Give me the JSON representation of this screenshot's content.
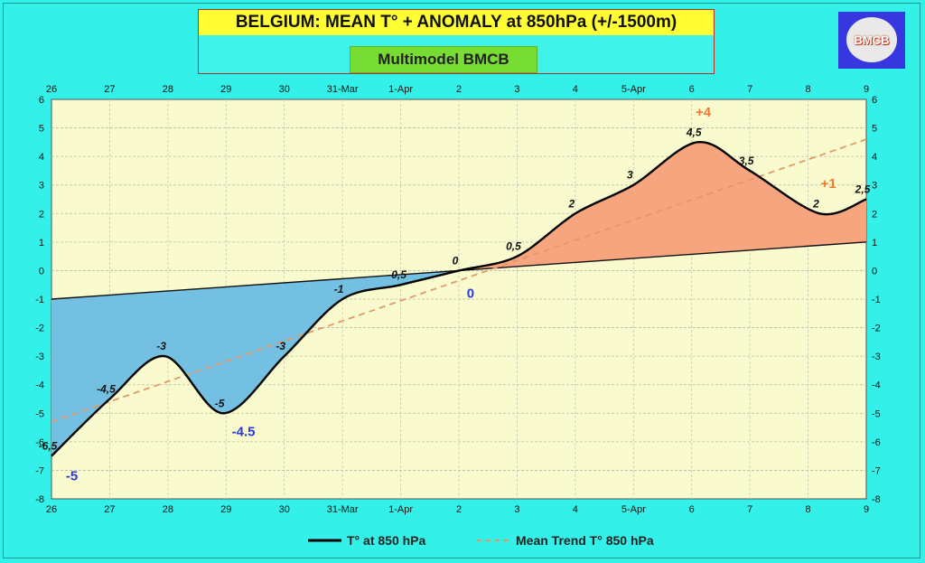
{
  "title": "BELGIUM:  MEAN T° + ANOMALY at 850hPa (+/-1500m)",
  "subtitle": "Multimodel BMCB",
  "logo_text": "BMCB",
  "colors": {
    "background": "#33f0e8",
    "plot_bg": "#fafacf",
    "warm_fill": "#f7a57e",
    "cold_fill": "#74c0e2",
    "temp_line": "#000000",
    "trend_line": "#e09a6a",
    "warm_label": "#ef7a2e",
    "cold_label": "#2b39d8"
  },
  "chart_data": {
    "type": "line",
    "x_ticks": [
      "26",
      "27",
      "28",
      "29",
      "30",
      "31-Mar",
      "1-Apr",
      "2",
      "3",
      "4",
      "5-Apr",
      "6",
      "7",
      "8",
      "9"
    ],
    "ylim": [
      -8,
      6
    ],
    "y_ticks": [
      -8,
      -7,
      -6,
      -5,
      -4,
      -3,
      -2,
      -1,
      0,
      1,
      2,
      3,
      4,
      5,
      6
    ],
    "grid": true,
    "legend_position": "bottom",
    "series": [
      {
        "name": "T° at 850 hPa",
        "points": [
          {
            "x": 0.0,
            "y": -6.5,
            "label": "-6,5"
          },
          {
            "x": 1.0,
            "y": -4.5,
            "label": "-4,5"
          },
          {
            "x": 1.95,
            "y": -3.0,
            "label": "-3"
          },
          {
            "x": 2.95,
            "y": -5.0,
            "label": "-5"
          },
          {
            "x": 4.0,
            "y": -3.0,
            "label": "-3"
          },
          {
            "x": 5.0,
            "y": -1.0,
            "label": "-1"
          },
          {
            "x": 6.0,
            "y": -0.5,
            "label": "-0,5"
          },
          {
            "x": 7.0,
            "y": 0.0,
            "label": "0"
          },
          {
            "x": 8.0,
            "y": 0.5,
            "label": "0,5"
          },
          {
            "x": 9.0,
            "y": 2.0,
            "label": "2"
          },
          {
            "x": 10.0,
            "y": 3.0,
            "label": "3"
          },
          {
            "x": 11.1,
            "y": 4.5,
            "label": "4,5"
          },
          {
            "x": 12.0,
            "y": 3.5,
            "label": "3,5"
          },
          {
            "x": 13.2,
            "y": 2.0,
            "label": "2"
          },
          {
            "x": 14.0,
            "y": 2.5,
            "label": "2,5"
          }
        ]
      },
      {
        "name": "Mean Trend T° 850 hPa",
        "points": [
          {
            "x": 0,
            "y": -5.3
          },
          {
            "x": 14,
            "y": 4.6
          }
        ]
      }
    ],
    "normal_line": {
      "start": -1.0,
      "end": 1.0
    },
    "annotations": [
      {
        "text": "+4",
        "x": 11.2,
        "y": 5.4,
        "color": "#ef7a2e"
      },
      {
        "text": "+1",
        "x": 13.35,
        "y": 2.9,
        "color": "#ef7a2e"
      },
      {
        "text": "0",
        "x": 7.2,
        "y": -0.95,
        "color": "#2b39d8"
      },
      {
        "text": "-4.5",
        "x": 3.3,
        "y": -5.8,
        "color": "#2b39d8"
      },
      {
        "text": "-5",
        "x": 0.35,
        "y": -7.35,
        "color": "#2b39d8"
      }
    ]
  }
}
